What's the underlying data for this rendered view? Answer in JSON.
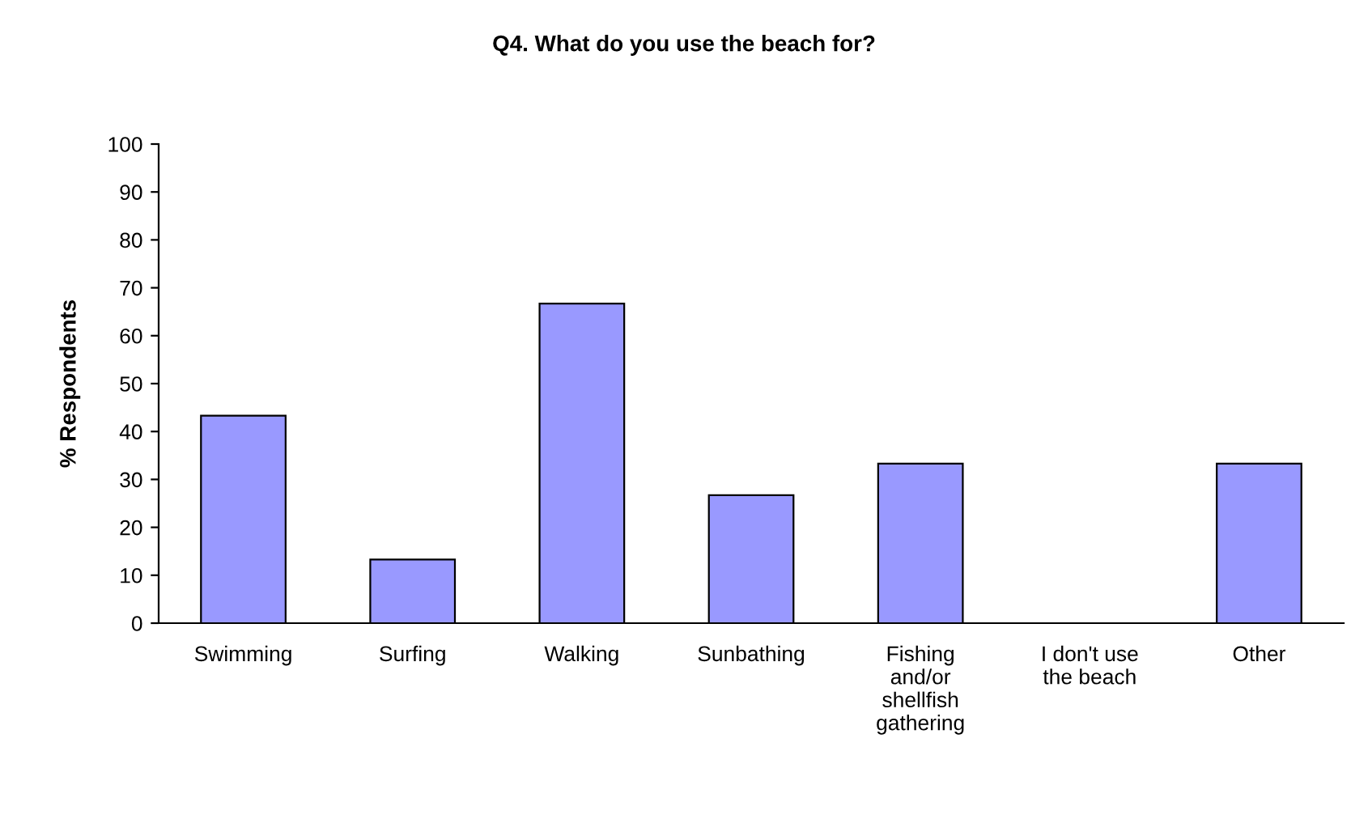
{
  "chart_data": {
    "type": "bar",
    "title": "Q4. What do you use the beach for?",
    "ylabel": "% Respondents",
    "categories": [
      "Swimming",
      "Surfing",
      "Walking",
      "Sunbathing",
      "Fishing\nand/or\nshellfish\ngathering",
      "I don't use\nthe beach",
      "Other"
    ],
    "values": [
      43.3,
      13.3,
      66.7,
      26.7,
      33.3,
      0,
      33.3
    ],
    "color": "#9999ff",
    "ylim": [
      0,
      100
    ],
    "yticks": [
      0,
      10,
      20,
      30,
      40,
      50,
      60,
      70,
      80,
      90,
      100
    ],
    "grid": false,
    "legend": false
  }
}
